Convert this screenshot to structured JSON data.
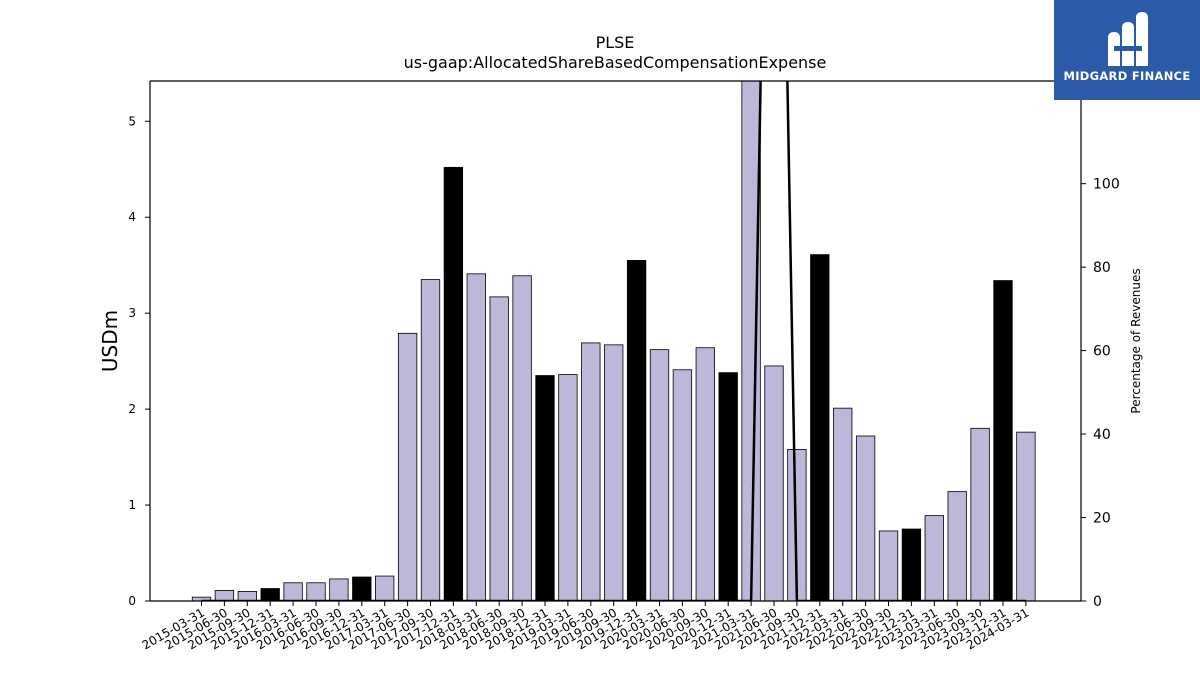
{
  "chart_data": {
    "type": "bar",
    "title": "PLSE",
    "subtitle": "us-gaap:AllocatedShareBasedCompensationExpense",
    "ylabel": "USDm",
    "y2label": "Percentage of Revenues",
    "ylim": [
      0,
      5.42
    ],
    "y2lim": [
      0,
      124.6
    ],
    "yticks": [
      0,
      1,
      2,
      3,
      4,
      5
    ],
    "y2ticks": [
      0,
      20,
      40,
      60,
      80,
      100
    ],
    "categories": [
      "2015-03-31",
      "2015-06-30",
      "2015-09-30",
      "2015-12-31",
      "2016-03-31",
      "2016-06-30",
      "2016-09-30",
      "2016-12-31",
      "2017-03-31",
      "2017-06-30",
      "2017-09-30",
      "2017-12-31",
      "2018-03-31",
      "2018-06-30",
      "2018-09-30",
      "2018-12-31",
      "2019-03-31",
      "2019-06-30",
      "2019-09-30",
      "2019-12-31",
      "2020-03-31",
      "2020-06-30",
      "2020-09-30",
      "2020-12-31",
      "2021-03-31",
      "2021-06-30",
      "2021-09-30",
      "2021-12-31",
      "2022-03-31",
      "2022-06-30",
      "2022-09-30",
      "2022-12-31",
      "2023-03-31",
      "2023-06-30",
      "2023-09-30",
      "2023-12-31",
      "2024-03-31"
    ],
    "values": [
      0.04,
      0.11,
      0.1,
      0.13,
      0.19,
      0.19,
      0.23,
      0.25,
      0.26,
      2.79,
      3.35,
      4.52,
      3.41,
      3.17,
      3.39,
      2.35,
      2.36,
      2.69,
      2.67,
      3.55,
      2.62,
      2.41,
      2.64,
      2.38,
      5.42,
      2.45,
      1.58,
      3.61,
      2.01,
      1.72,
      0.73,
      0.75,
      0.89,
      1.14,
      1.8,
      3.34,
      1.76
    ],
    "highlight": [
      false,
      false,
      false,
      true,
      false,
      false,
      false,
      true,
      false,
      false,
      false,
      true,
      false,
      false,
      false,
      true,
      false,
      false,
      false,
      true,
      false,
      false,
      false,
      true,
      false,
      false,
      false,
      true,
      false,
      false,
      false,
      true,
      false,
      false,
      false,
      true,
      false
    ],
    "line_values": [
      0,
      0,
      0,
      0,
      0,
      0,
      0,
      0,
      0,
      0,
      0,
      0,
      0,
      0,
      0,
      0,
      0,
      0,
      0,
      0,
      0,
      0,
      0,
      0,
      0,
      300,
      0,
      0,
      0,
      0,
      0,
      0,
      0,
      0,
      0,
      0,
      0
    ],
    "colors": {
      "bar": "#bcb8d9",
      "highlight": "#000000",
      "line": "#000000"
    }
  },
  "logo": {
    "text": "MIDGARD FINANCE",
    "color": "#2b5aa8"
  }
}
